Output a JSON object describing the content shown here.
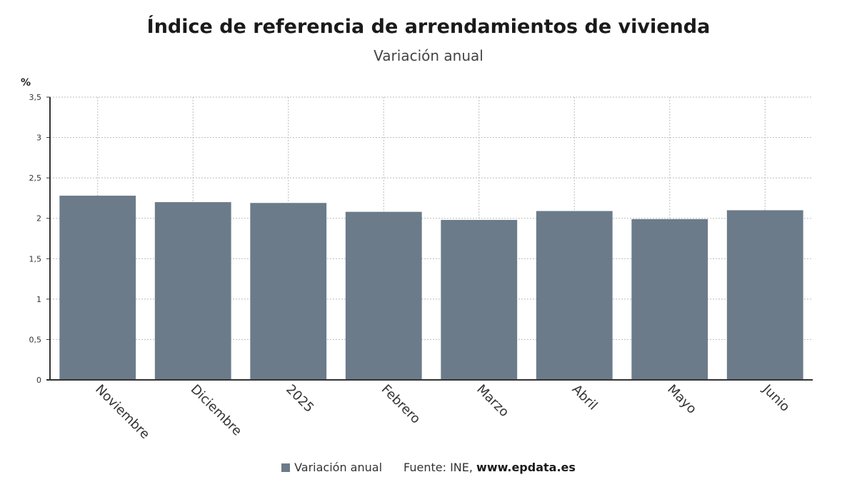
{
  "chart_data": {
    "type": "bar",
    "title": "Índice de referencia de arrendamientos de vivienda",
    "subtitle": "Variación anual",
    "ylabel": "%",
    "categories": [
      "Noviembre",
      "Diciembre",
      "2025",
      "Febrero",
      "Marzo",
      "Abril",
      "Mayo",
      "Junio"
    ],
    "series": [
      {
        "name": "Variación anual",
        "values": [
          2.28,
          2.2,
          2.19,
          2.08,
          1.98,
          2.09,
          1.99,
          2.1
        ]
      }
    ],
    "ylim": [
      0,
      3.5
    ],
    "yticks": [
      "0",
      "0,5",
      "1",
      "1,5",
      "2",
      "2,5",
      "3",
      "3,5"
    ],
    "grid": true,
    "legend_position": "bottom",
    "bar_color": "#6b7b8a"
  },
  "source": {
    "prefix": "Fuente: INE,",
    "site": "www.epdata.es"
  }
}
